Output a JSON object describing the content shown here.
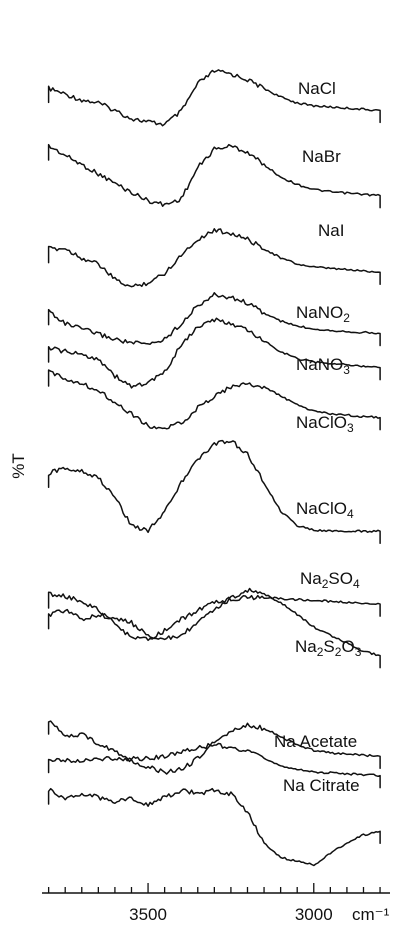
{
  "chart_data": {
    "type": "line",
    "ylabel": "%T",
    "xlabel": "",
    "x_unit_label": "cm⁻¹",
    "xlim": [
      3820,
      2770
    ],
    "x_ticks": [
      3500,
      3000
    ],
    "x_minor_step": 50,
    "grid": false,
    "series": [
      {
        "name": "NaCl",
        "x": [
          3800,
          3750,
          3700,
          3650,
          3600,
          3550,
          3500,
          3450,
          3400,
          3350,
          3300,
          3250,
          3200,
          3150,
          3100,
          3050,
          3000,
          2950,
          2900,
          2850,
          2800
        ],
        "y": [
          0.3,
          0.4,
          0.5,
          0.55,
          0.68,
          0.82,
          0.88,
          0.92,
          0.7,
          0.22,
          0.0,
          0.05,
          0.15,
          0.3,
          0.45,
          0.55,
          0.6,
          0.62,
          0.64,
          0.66,
          0.68
        ]
      },
      {
        "name": "NaBr",
        "x": [
          3800,
          3750,
          3700,
          3650,
          3600,
          3550,
          3500,
          3450,
          3400,
          3350,
          3300,
          3250,
          3200,
          3150,
          3100,
          3050,
          3000,
          2950,
          2900,
          2850,
          2800
        ],
        "y": [
          0.0,
          0.15,
          0.3,
          0.45,
          0.6,
          0.75,
          0.88,
          0.95,
          0.85,
          0.35,
          0.05,
          0.0,
          0.1,
          0.3,
          0.5,
          0.62,
          0.7,
          0.74,
          0.76,
          0.78,
          0.8
        ]
      },
      {
        "name": "NaI",
        "x": [
          3800,
          3750,
          3700,
          3650,
          3600,
          3550,
          3500,
          3450,
          3400,
          3350,
          3300,
          3250,
          3200,
          3150,
          3100,
          3050,
          3000,
          2950,
          2900,
          2850,
          2800
        ],
        "y": [
          0.3,
          0.3,
          0.45,
          0.55,
          0.8,
          0.92,
          0.85,
          0.7,
          0.4,
          0.15,
          0.0,
          0.05,
          0.15,
          0.3,
          0.45,
          0.55,
          0.6,
          0.62,
          0.64,
          0.66,
          0.68
        ]
      },
      {
        "name": "NaNO2",
        "x": [
          3800,
          3750,
          3700,
          3650,
          3600,
          3550,
          3500,
          3450,
          3400,
          3350,
          3300,
          3250,
          3200,
          3150,
          3100,
          3050,
          3000,
          2950,
          2900,
          2850,
          2800
        ],
        "y": [
          0.3,
          0.55,
          0.65,
          0.75,
          0.85,
          0.92,
          0.95,
          0.85,
          0.55,
          0.2,
          0.0,
          0.05,
          0.15,
          0.35,
          0.5,
          0.6,
          0.65,
          0.68,
          0.7,
          0.72,
          0.74
        ]
      },
      {
        "name": "NaNO3",
        "x": [
          3800,
          3750,
          3700,
          3650,
          3600,
          3550,
          3500,
          3450,
          3400,
          3350,
          3300,
          3250,
          3200,
          3150,
          3100,
          3050,
          3000,
          2950,
          2900,
          2850,
          2800
        ],
        "y": [
          0.4,
          0.45,
          0.5,
          0.55,
          0.8,
          0.95,
          0.9,
          0.75,
          0.35,
          0.1,
          0.0,
          0.05,
          0.15,
          0.3,
          0.45,
          0.55,
          0.6,
          0.62,
          0.64,
          0.66,
          0.68
        ]
      },
      {
        "name": "NaClO3",
        "x": [
          3800,
          3750,
          3700,
          3650,
          3600,
          3550,
          3500,
          3450,
          3400,
          3350,
          3300,
          3250,
          3200,
          3150,
          3100,
          3050,
          3000,
          2950,
          2900,
          2850,
          2800
        ],
        "y": [
          0.0,
          0.1,
          0.2,
          0.3,
          0.5,
          0.7,
          0.9,
          0.95,
          0.85,
          0.6,
          0.4,
          0.25,
          0.2,
          0.25,
          0.4,
          0.55,
          0.65,
          0.7,
          0.72,
          0.74,
          0.76
        ]
      },
      {
        "name": "NaClO4",
        "x": [
          3800,
          3750,
          3700,
          3650,
          3600,
          3550,
          3500,
          3450,
          3400,
          3350,
          3300,
          3250,
          3200,
          3150,
          3100,
          3050,
          3000,
          2950,
          2900,
          2850,
          2800
        ],
        "y": [
          0.35,
          0.3,
          0.32,
          0.4,
          0.6,
          0.9,
          0.95,
          0.75,
          0.45,
          0.2,
          0.05,
          0.0,
          0.15,
          0.45,
          0.75,
          0.9,
          0.95,
          0.96,
          0.96,
          0.96,
          0.96
        ]
      },
      {
        "name": "Na2SO4",
        "x": [
          3800,
          3750,
          3700,
          3650,
          3600,
          3550,
          3500,
          3450,
          3400,
          3350,
          3300,
          3250,
          3200,
          3150,
          3100,
          3050,
          3000,
          2950,
          2900,
          2850,
          2800
        ],
        "y": [
          0.0,
          0.05,
          0.15,
          0.35,
          0.65,
          0.95,
          1.0,
          0.8,
          0.55,
          0.35,
          0.2,
          0.1,
          0.08,
          0.08,
          0.1,
          0.12,
          0.14,
          0.16,
          0.18,
          0.2,
          0.22
        ]
      },
      {
        "name": "Na2S2O3",
        "x": [
          3800,
          3750,
          3700,
          3650,
          3600,
          3550,
          3500,
          3450,
          3400,
          3350,
          3300,
          3250,
          3200,
          3150,
          3100,
          3050,
          3000,
          2950,
          2900,
          2850,
          2800
        ],
        "y": [
          0.3,
          0.25,
          0.35,
          0.3,
          0.35,
          0.4,
          0.55,
          0.6,
          0.55,
          0.4,
          0.25,
          0.1,
          0.0,
          0.05,
          0.15,
          0.3,
          0.45,
          0.55,
          0.65,
          0.75,
          0.8
        ]
      },
      {
        "name": "Na Acetate",
        "x": [
          3800,
          3750,
          3700,
          3650,
          3600,
          3550,
          3500,
          3450,
          3400,
          3350,
          3300,
          3250,
          3200,
          3150,
          3100,
          3050,
          3000,
          2950,
          2900,
          2850,
          2800
        ],
        "y": [
          0.0,
          0.3,
          0.25,
          0.45,
          0.55,
          0.75,
          0.85,
          0.95,
          0.9,
          0.7,
          0.4,
          0.2,
          0.1,
          0.15,
          0.3,
          0.45,
          0.55,
          0.6,
          0.62,
          0.64,
          0.66
        ]
      },
      {
        "name": "Na Citrate",
        "x": [
          3800,
          3750,
          3700,
          3650,
          3600,
          3550,
          3500,
          3450,
          3400,
          3350,
          3300,
          3250,
          3200,
          3150,
          3100,
          3050,
          3000,
          2950,
          2900,
          2850,
          2800
        ],
        "y": [
          0.3,
          0.35,
          0.35,
          0.3,
          0.3,
          0.3,
          0.3,
          0.25,
          0.15,
          0.05,
          0.0,
          0.05,
          0.15,
          0.3,
          0.45,
          0.55,
          0.6,
          0.62,
          0.64,
          0.66,
          0.68
        ]
      },
      {
        "name": "Na Citrate",
        "x": [
          3800,
          3750,
          3700,
          3650,
          3600,
          3550,
          3500,
          3450,
          3400,
          3350,
          3300,
          3250,
          3200,
          3150,
          3100,
          3050,
          3000,
          2950,
          2900,
          2850,
          2800
        ],
        "y": [
          0.0,
          0.1,
          0.05,
          0.1,
          0.15,
          0.1,
          0.2,
          0.1,
          0.0,
          0.05,
          0.0,
          0.05,
          0.3,
          0.7,
          0.9,
          0.95,
          1.0,
          0.85,
          0.7,
          0.6,
          0.55
        ]
      }
    ]
  }
}
